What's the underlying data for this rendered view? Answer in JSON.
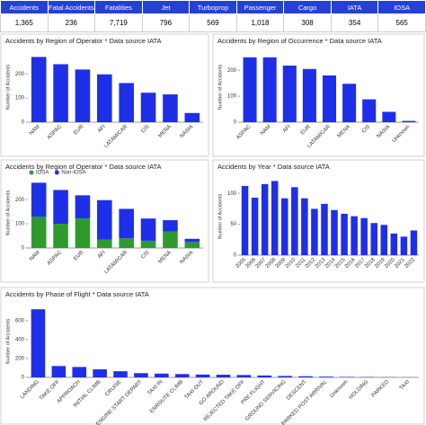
{
  "stats": {
    "headers": [
      "Accidents",
      "Fatal Accidents",
      "Fatalities",
      "Jet",
      "Turboprop",
      "Passenger",
      "Cargo",
      "IATA",
      "IOSA"
    ],
    "values": [
      "1,365",
      "236",
      "7,719",
      "796",
      "569",
      "1,018",
      "308",
      "354",
      "565"
    ]
  },
  "chart_data": [
    {
      "type": "bar",
      "title": "Accidents by Region of Operator * Data source IATA",
      "y_label": "Number of Accidents",
      "categories": [
        "NAM",
        "ASPAC",
        "EUR",
        "AFI",
        "LATAM/CAR",
        "CIS",
        "MENA",
        "NASIA"
      ],
      "values": [
        270,
        240,
        218,
        198,
        162,
        122,
        115,
        38
      ],
      "color": "#1f2fe8",
      "ylim": [
        0,
        290
      ],
      "yticks": [
        0,
        100,
        200
      ]
    },
    {
      "type": "bar",
      "title": "Accidents by Region of Occurrence * Data source IATA",
      "y_label": "Number of Accidents",
      "categories": [
        "ASPAC",
        "NAM",
        "AFI",
        "EUR",
        "LATAM/CAR",
        "MENA",
        "CIS",
        "NASIA",
        "Unknown"
      ],
      "values": [
        250,
        250,
        218,
        205,
        180,
        148,
        88,
        40,
        5
      ],
      "color": "#1f2fe8",
      "ylim": [
        0,
        270
      ],
      "yticks": [
        0,
        100,
        200
      ]
    },
    {
      "type": "stacked_bar",
      "title": "Accidents by Region of Operator * Data source IATA",
      "y_label": "Number of Accidents",
      "categories": [
        "NAM",
        "ASPAC",
        "EUR",
        "AFI",
        "LATAM/CAR",
        "CIS",
        "MENA",
        "NASIA"
      ],
      "series": [
        {
          "name": "IOSA",
          "color": "#2e9a2e",
          "values": [
            130,
            100,
            122,
            35,
            40,
            30,
            68,
            25
          ]
        },
        {
          "name": "Non-IOSA",
          "color": "#1f2fe8",
          "values": [
            140,
            140,
            96,
            163,
            122,
            92,
            47,
            13
          ]
        }
      ],
      "ylim": [
        0,
        290
      ],
      "yticks": [
        0,
        100,
        200
      ]
    },
    {
      "type": "bar",
      "title": "Accidents by Year * Data source IATA",
      "y_label": "Number of Accidents",
      "categories": [
        "2005",
        "2006",
        "2007",
        "2008",
        "2009",
        "2010",
        "2011",
        "2012",
        "2013",
        "2014",
        "2015",
        "2016",
        "2017",
        "2018",
        "2019",
        "2020",
        "2021",
        "2022"
      ],
      "values": [
        112,
        93,
        115,
        120,
        92,
        110,
        92,
        75,
        83,
        73,
        67,
        63,
        60,
        52,
        49,
        35,
        30,
        40
      ],
      "color": "#1f2fe8",
      "ylim": [
        0,
        125
      ],
      "yticks": [
        0,
        50,
        100
      ]
    },
    {
      "type": "bar",
      "title": "Accidents by Phase of Flight * Data source IATA",
      "y_label": "Number of Accidents",
      "categories": [
        "LANDING",
        "TAKE OFF",
        "APPROACH",
        "INITIAL CLIMB",
        "CRUISE",
        "ENGINE START DEPART",
        "TAXI IN",
        "ENROUTE CLIMB",
        "TAXI OUT",
        "GO AROUND",
        "REJECTED TAKE OFF",
        "PRE FLIGHT",
        "GROUND SERVICING",
        "DESCENT",
        "PARKED POST ARRIVAL",
        "Unknown",
        "HOLDING",
        "PARKED",
        "TAXI"
      ],
      "values": [
        720,
        120,
        110,
        85,
        65,
        45,
        40,
        35,
        30,
        28,
        25,
        20,
        15,
        12,
        8,
        5,
        3,
        2,
        1
      ],
      "color": "#1f2fe8",
      "ylim": [
        0,
        760
      ],
      "yticks": [
        0,
        200,
        400,
        600
      ]
    }
  ]
}
